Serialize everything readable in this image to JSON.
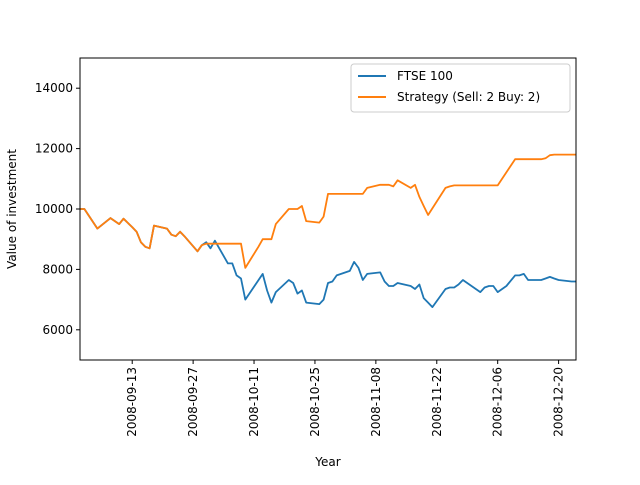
{
  "chart_data": {
    "type": "line",
    "title": "",
    "xlabel": "Year",
    "ylabel": "Value of investment",
    "xlim": [
      "2008-09-01",
      "2008-12-24"
    ],
    "ylim": [
      5000,
      15000
    ],
    "x_ticks": [
      "2008-09-13",
      "2008-09-27",
      "2008-10-11",
      "2008-10-25",
      "2008-11-08",
      "2008-11-22",
      "2008-12-06",
      "2008-12-20"
    ],
    "y_ticks": [
      6000,
      8000,
      10000,
      12000,
      14000
    ],
    "y_tick_labels": [
      "6000",
      "8000",
      "10000",
      "12000",
      "14000"
    ],
    "legend": {
      "position": "upper-right"
    },
    "grid": false,
    "series": [
      {
        "name": "FTSE 100",
        "color": "#1f77b4",
        "points": [
          [
            "2008-09-01",
            10000
          ],
          [
            "2008-09-02",
            10000
          ],
          [
            "2008-09-05",
            9350
          ],
          [
            "2008-09-08",
            9700
          ],
          [
            "2008-09-10",
            9500
          ],
          [
            "2008-09-11",
            9680
          ],
          [
            "2008-09-13",
            9400
          ],
          [
            "2008-09-14",
            9250
          ],
          [
            "2008-09-15",
            8900
          ],
          [
            "2008-09-16",
            8750
          ],
          [
            "2008-09-17",
            8700
          ],
          [
            "2008-09-18",
            9450
          ],
          [
            "2008-09-21",
            9350
          ],
          [
            "2008-09-22",
            9150
          ],
          [
            "2008-09-23",
            9100
          ],
          [
            "2008-09-24",
            9250
          ],
          [
            "2008-09-25",
            9100
          ],
          [
            "2008-09-28",
            8600
          ],
          [
            "2008-09-29",
            8800
          ],
          [
            "2008-09-30",
            8900
          ],
          [
            "2008-10-01",
            8700
          ],
          [
            "2008-10-02",
            8950
          ],
          [
            "2008-10-05",
            8200
          ],
          [
            "2008-10-06",
            8200
          ],
          [
            "2008-10-07",
            7800
          ],
          [
            "2008-10-08",
            7700
          ],
          [
            "2008-10-09",
            7000
          ],
          [
            "2008-10-13",
            7850
          ],
          [
            "2008-10-14",
            7300
          ],
          [
            "2008-10-15",
            6900
          ],
          [
            "2008-10-16",
            7250
          ],
          [
            "2008-10-19",
            7650
          ],
          [
            "2008-10-20",
            7550
          ],
          [
            "2008-10-21",
            7200
          ],
          [
            "2008-10-22",
            7300
          ],
          [
            "2008-10-23",
            6900
          ],
          [
            "2008-10-26",
            6850
          ],
          [
            "2008-10-27",
            7000
          ],
          [
            "2008-10-28",
            7550
          ],
          [
            "2008-10-29",
            7600
          ],
          [
            "2008-10-30",
            7800
          ],
          [
            "2008-11-02",
            7950
          ],
          [
            "2008-11-03",
            8250
          ],
          [
            "2008-11-04",
            8050
          ],
          [
            "2008-11-05",
            7650
          ],
          [
            "2008-11-06",
            7850
          ],
          [
            "2008-11-09",
            7900
          ],
          [
            "2008-11-10",
            7600
          ],
          [
            "2008-11-11",
            7450
          ],
          [
            "2008-11-12",
            7450
          ],
          [
            "2008-11-13",
            7550
          ],
          [
            "2008-11-16",
            7450
          ],
          [
            "2008-11-17",
            7350
          ],
          [
            "2008-11-18",
            7500
          ],
          [
            "2008-11-19",
            7050
          ],
          [
            "2008-11-20",
            6900
          ],
          [
            "2008-11-21",
            6750
          ],
          [
            "2008-11-24",
            7350
          ],
          [
            "2008-11-25",
            7400
          ],
          [
            "2008-11-26",
            7400
          ],
          [
            "2008-11-27",
            7500
          ],
          [
            "2008-11-28",
            7650
          ],
          [
            "2008-12-02",
            7250
          ],
          [
            "2008-12-03",
            7400
          ],
          [
            "2008-12-04",
            7450
          ],
          [
            "2008-12-05",
            7450
          ],
          [
            "2008-12-06",
            7250
          ],
          [
            "2008-12-08",
            7450
          ],
          [
            "2008-12-10",
            7800
          ],
          [
            "2008-12-11",
            7800
          ],
          [
            "2008-12-12",
            7850
          ],
          [
            "2008-12-13",
            7650
          ],
          [
            "2008-12-16",
            7650
          ],
          [
            "2008-12-17",
            7700
          ],
          [
            "2008-12-18",
            7750
          ],
          [
            "2008-12-19",
            7700
          ],
          [
            "2008-12-20",
            7650
          ],
          [
            "2008-12-23",
            7600
          ],
          [
            "2008-12-24",
            7600
          ]
        ]
      },
      {
        "name": "Strategy (Sell: 2 Buy: 2)",
        "color": "#ff7f0e",
        "points": [
          [
            "2008-09-01",
            10000
          ],
          [
            "2008-09-02",
            10000
          ],
          [
            "2008-09-05",
            9350
          ],
          [
            "2008-09-08",
            9700
          ],
          [
            "2008-09-10",
            9500
          ],
          [
            "2008-09-11",
            9680
          ],
          [
            "2008-09-13",
            9400
          ],
          [
            "2008-09-14",
            9250
          ],
          [
            "2008-09-15",
            8900
          ],
          [
            "2008-09-16",
            8750
          ],
          [
            "2008-09-17",
            8700
          ],
          [
            "2008-09-18",
            9450
          ],
          [
            "2008-09-21",
            9350
          ],
          [
            "2008-09-22",
            9150
          ],
          [
            "2008-09-23",
            9100
          ],
          [
            "2008-09-24",
            9250
          ],
          [
            "2008-09-25",
            9100
          ],
          [
            "2008-09-28",
            8600
          ],
          [
            "2008-09-29",
            8800
          ],
          [
            "2008-09-30",
            8850
          ],
          [
            "2008-10-01",
            8850
          ],
          [
            "2008-10-02",
            8850
          ],
          [
            "2008-10-08",
            8850
          ],
          [
            "2008-10-09",
            8050
          ],
          [
            "2008-10-12",
            8750
          ],
          [
            "2008-10-13",
            9000
          ],
          [
            "2008-10-15",
            9000
          ],
          [
            "2008-10-16",
            9500
          ],
          [
            "2008-10-19",
            10000
          ],
          [
            "2008-10-20",
            10000
          ],
          [
            "2008-10-21",
            10000
          ],
          [
            "2008-10-22",
            10100
          ],
          [
            "2008-10-23",
            9600
          ],
          [
            "2008-10-26",
            9550
          ],
          [
            "2008-10-27",
            9750
          ],
          [
            "2008-10-28",
            10500
          ],
          [
            "2008-10-29",
            10500
          ],
          [
            "2008-11-04",
            10500
          ],
          [
            "2008-11-05",
            10500
          ],
          [
            "2008-11-06",
            10700
          ],
          [
            "2008-11-09",
            10800
          ],
          [
            "2008-11-10",
            10800
          ],
          [
            "2008-11-11",
            10800
          ],
          [
            "2008-11-12",
            10750
          ],
          [
            "2008-11-13",
            10950
          ],
          [
            "2008-11-16",
            10700
          ],
          [
            "2008-11-17",
            10800
          ],
          [
            "2008-11-18",
            10400
          ],
          [
            "2008-11-19",
            10100
          ],
          [
            "2008-11-20",
            9800
          ],
          [
            "2008-11-24",
            10700
          ],
          [
            "2008-11-25",
            10750
          ],
          [
            "2008-11-26",
            10780
          ],
          [
            "2008-12-06",
            10780
          ],
          [
            "2008-12-10",
            11650
          ],
          [
            "2008-12-16",
            11650
          ],
          [
            "2008-12-17",
            11680
          ],
          [
            "2008-12-18",
            11780
          ],
          [
            "2008-12-19",
            11800
          ],
          [
            "2008-12-24",
            11800
          ]
        ]
      }
    ]
  }
}
